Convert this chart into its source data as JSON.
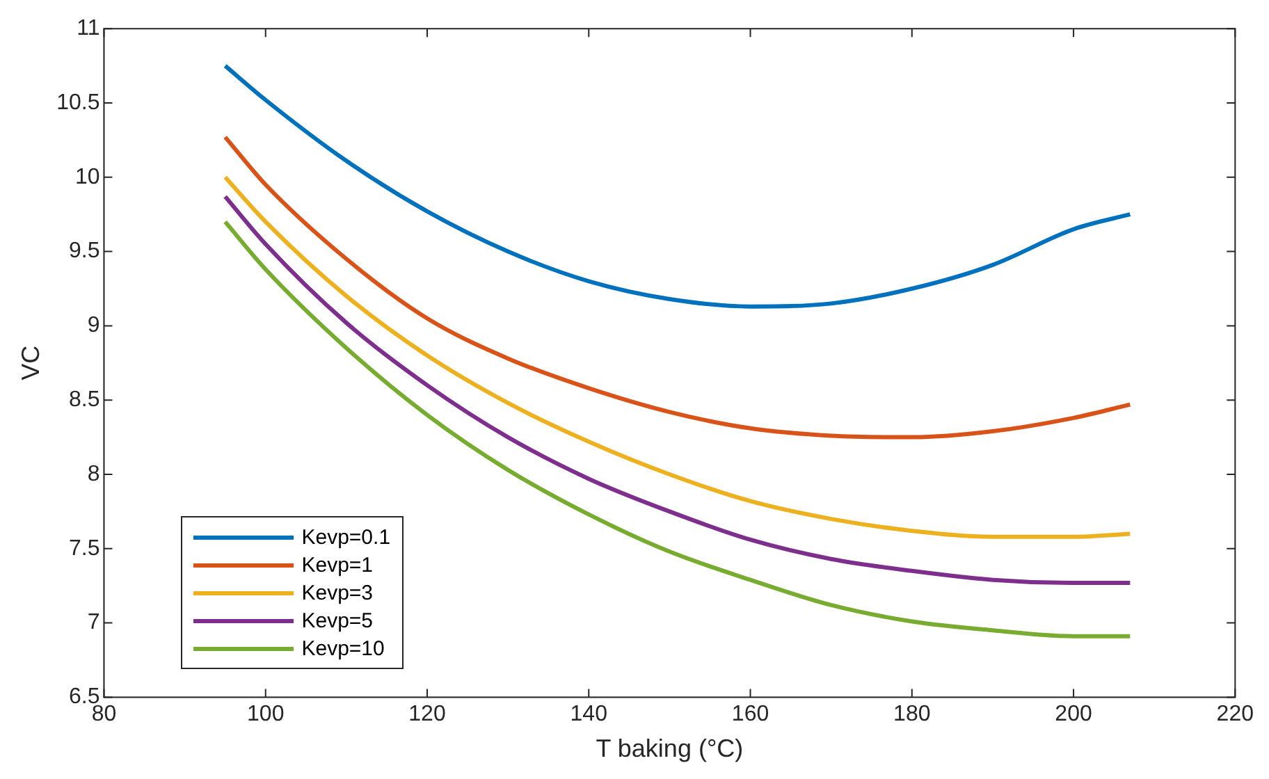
{
  "chart_data": {
    "type": "line",
    "xlabel": "T baking (°C)",
    "ylabel": "VC",
    "x": [
      95,
      100,
      110,
      120,
      130,
      140,
      150,
      160,
      170,
      180,
      190,
      200,
      207
    ],
    "series": [
      {
        "name": "Kevp=0.1",
        "color": "#0072bd",
        "values": [
          10.75,
          10.52,
          10.11,
          9.77,
          9.5,
          9.3,
          9.18,
          9.13,
          9.15,
          9.25,
          9.41,
          9.65,
          9.75
        ]
      },
      {
        "name": "Kevp=1",
        "color": "#d95319",
        "values": [
          10.27,
          9.95,
          9.45,
          9.05,
          8.78,
          8.58,
          8.42,
          8.31,
          8.26,
          8.25,
          8.29,
          8.38,
          8.47
        ]
      },
      {
        "name": "Kevp=3",
        "color": "#edb120",
        "values": [
          10.0,
          9.7,
          9.2,
          8.8,
          8.48,
          8.22,
          8.0,
          7.82,
          7.7,
          7.62,
          7.58,
          7.58,
          7.6
        ]
      },
      {
        "name": "Kevp=5",
        "color": "#7e2f8e",
        "values": [
          9.87,
          9.55,
          9.02,
          8.6,
          8.25,
          7.97,
          7.75,
          7.56,
          7.43,
          7.35,
          7.29,
          7.27,
          7.27
        ]
      },
      {
        "name": "Kevp=10",
        "color": "#77ac30",
        "values": [
          9.7,
          9.38,
          8.85,
          8.4,
          8.03,
          7.73,
          7.48,
          7.29,
          7.12,
          7.01,
          6.95,
          6.91,
          6.91
        ]
      }
    ],
    "xlim": [
      80,
      220
    ],
    "xticks": [
      80,
      100,
      120,
      140,
      160,
      180,
      200,
      220
    ],
    "ylim": [
      6.5,
      11
    ],
    "yticks": [
      6.5,
      7,
      7.5,
      8,
      8.5,
      9,
      9.5,
      10,
      10.5,
      11
    ],
    "grid": false,
    "legend": "bottom left",
    "marker": "none",
    "line_style": "solid"
  }
}
